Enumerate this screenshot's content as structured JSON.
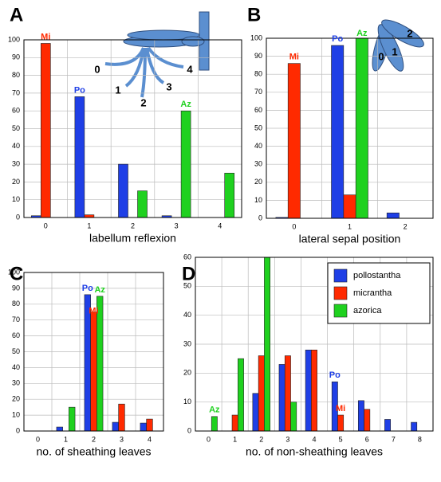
{
  "chart_data": [
    {
      "type": "bar",
      "panel": "A",
      "xlabel": "labellum reflexion",
      "categories": [
        "0",
        "1",
        "2",
        "3",
        "4"
      ],
      "series": [
        {
          "color": "#1f3fe6",
          "values": [
            1,
            68,
            30,
            1,
            0
          ]
        },
        {
          "color": "#ff2a00",
          "values": [
            98,
            1.5,
            0,
            0,
            0
          ]
        },
        {
          "color": "#1fd11f",
          "values": [
            0,
            0,
            15,
            60,
            25
          ]
        }
      ],
      "annotations": [
        "Mi",
        "Po",
        "Az"
      ],
      "icon_labels": [
        "0",
        "1",
        "2",
        "3",
        "4"
      ],
      "ylim": [
        0,
        100
      ],
      "yticks": [
        0,
        10,
        20,
        30,
        40,
        50,
        60,
        70,
        80,
        90,
        100
      ],
      "grid": true
    },
    {
      "type": "bar",
      "panel": "B",
      "xlabel": "lateral sepal position",
      "categories": [
        "0",
        "1",
        "2"
      ],
      "series": [
        {
          "color": "#1f3fe6",
          "values": [
            0.5,
            96,
            3
          ]
        },
        {
          "color": "#ff2a00",
          "values": [
            86,
            13,
            0
          ]
        },
        {
          "color": "#1fd11f",
          "values": [
            0,
            100,
            0
          ]
        }
      ],
      "annotations": [
        "Mi",
        "Po",
        "Az"
      ],
      "icon_labels": [
        "0",
        "1",
        "2"
      ],
      "ylim": [
        0,
        100
      ],
      "yticks": [
        0,
        10,
        20,
        30,
        40,
        50,
        60,
        70,
        80,
        90,
        100
      ],
      "grid": true
    },
    {
      "type": "bar",
      "panel": "C",
      "xlabel": "no. of sheathing leaves",
      "categories": [
        "0",
        "1",
        "2",
        "3",
        "4"
      ],
      "series": [
        {
          "color": "#1f3fe6",
          "values": [
            0,
            2.5,
            86,
            5.5,
            5
          ]
        },
        {
          "color": "#ff2a00",
          "values": [
            0,
            0,
            75,
            17,
            7.5
          ]
        },
        {
          "color": "#1fd11f",
          "values": [
            0,
            15,
            85,
            0,
            0
          ]
        }
      ],
      "annotations": [
        "Po",
        "Mi",
        "Az"
      ],
      "ylim": [
        0,
        100
      ],
      "yticks": [
        0,
        10,
        20,
        30,
        40,
        50,
        60,
        70,
        80,
        90,
        100
      ],
      "grid": true
    },
    {
      "type": "bar",
      "panel": "D",
      "xlabel": "no. of non-sheathing leaves",
      "categories": [
        "0",
        "1",
        "2",
        "3",
        "4",
        "5",
        "6",
        "7",
        "8"
      ],
      "series": [
        {
          "name": "pollostantha",
          "color": "#1f3fe6",
          "values": [
            0,
            0,
            13,
            23,
            28,
            17,
            10.5,
            4,
            3
          ]
        },
        {
          "name": "micrantha",
          "color": "#ff2a00",
          "values": [
            0,
            5.5,
            26,
            26,
            28,
            5.5,
            7.5,
            0,
            0
          ]
        },
        {
          "name": "azorica",
          "color": "#1fd11f",
          "values": [
            5,
            25,
            60,
            10,
            0,
            0,
            0,
            0,
            0
          ]
        }
      ],
      "annotations": [
        "Az",
        "Po",
        "Mi"
      ],
      "legend": "upper right",
      "ylim": [
        0,
        60
      ],
      "yticks": [
        0,
        10,
        20,
        30,
        40,
        50,
        60
      ],
      "grid": true
    }
  ]
}
